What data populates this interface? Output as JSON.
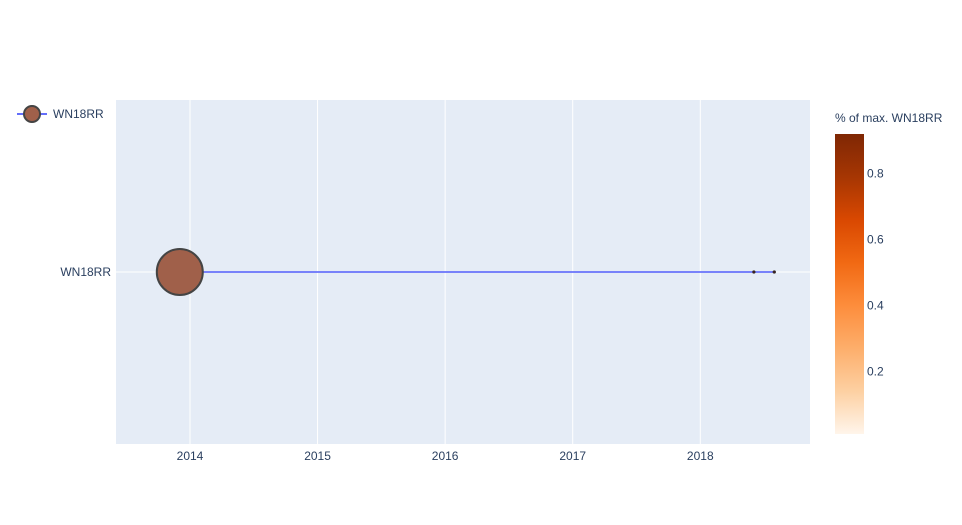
{
  "chart_data": {
    "type": "scatter",
    "title": "",
    "xlabel": "",
    "ylabel": "",
    "x_ticks": [
      "2014",
      "2015",
      "2016",
      "2017",
      "2018"
    ],
    "xlim": [
      2013.42,
      2018.86
    ],
    "categories": [
      "WN18RR"
    ],
    "grid": true,
    "legend_position": "top-left",
    "series": [
      {
        "name": "WN18RR",
        "line_color": "#636efa",
        "points": [
          {
            "x": 2013.92,
            "y": "WN18RR",
            "marker_size": "large",
            "color": "#a0604a"
          },
          {
            "x": 2018.42,
            "y": "WN18RR",
            "marker_size": "tiny",
            "color": "#3b1f1f"
          },
          {
            "x": 2018.58,
            "y": "WN18RR",
            "marker_size": "tiny",
            "color": "#3b1f1f"
          }
        ]
      }
    ],
    "colorbar": {
      "title": "% of max. WN18RR",
      "ticks": [
        "0.2",
        "0.4",
        "0.6",
        "0.8"
      ],
      "tick_values": [
        0.2,
        0.4,
        0.6,
        0.8
      ],
      "range": [
        0.01,
        0.92
      ],
      "colors": [
        "#fff5eb",
        "#fdd0a2",
        "#fdae6b",
        "#fd8d3c",
        "#f16913",
        "#d94801",
        "#a63603",
        "#7f2704"
      ]
    },
    "plot_bg": "#e5ecf6",
    "grid_color": "#ffffff",
    "text_color": "#2a3f5f"
  }
}
